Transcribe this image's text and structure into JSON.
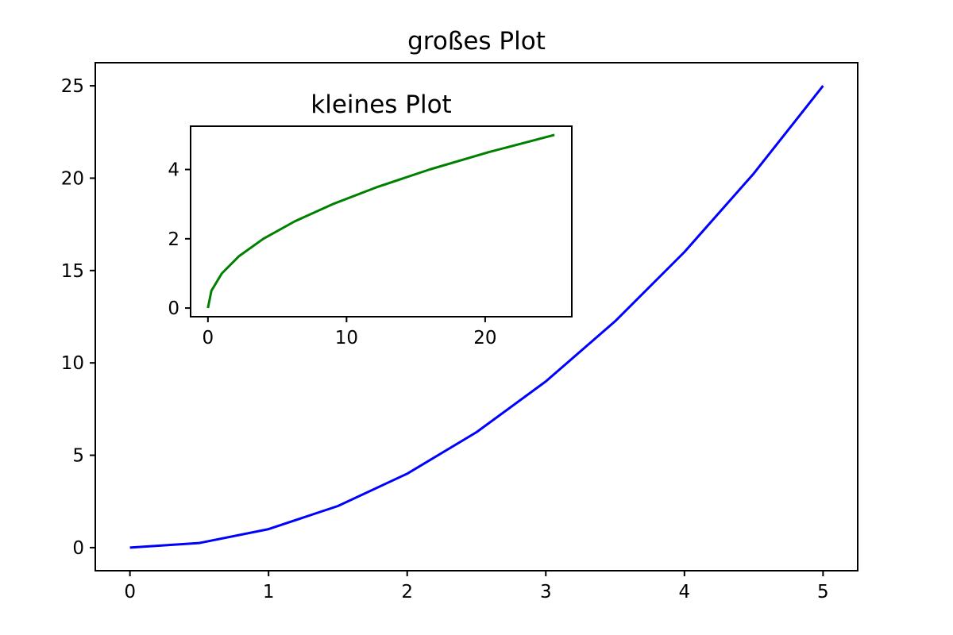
{
  "chart_data": [
    {
      "type": "line",
      "title": "großes Plot",
      "xlabel": "",
      "ylabel": "",
      "xlim": [
        -0.25,
        5.25
      ],
      "ylim": [
        -1.25,
        26.25
      ],
      "xticks": [
        0,
        1,
        2,
        3,
        4,
        5
      ],
      "yticks": [
        0,
        5,
        10,
        15,
        20,
        25
      ],
      "grid": false,
      "series": [
        {
          "color": "#0000ff",
          "x": [
            0,
            0.5,
            1,
            1.5,
            2,
            2.5,
            3,
            3.5,
            4,
            4.5,
            5
          ],
          "y": [
            0,
            0.25,
            1,
            2.25,
            4,
            6.25,
            9,
            12.25,
            16,
            20.25,
            25
          ]
        }
      ]
    },
    {
      "type": "line",
      "title": "kleines Plot",
      "xlabel": "",
      "ylabel": "",
      "xlim": [
        -1.25,
        26.25
      ],
      "ylim": [
        -0.25,
        5.25
      ],
      "xticks": [
        0,
        10,
        20
      ],
      "yticks": [
        0,
        2,
        4
      ],
      "grid": false,
      "series": [
        {
          "color": "#008000",
          "x": [
            0,
            0.25,
            1,
            2.25,
            4,
            6.25,
            9,
            12.25,
            16,
            20.25,
            25
          ],
          "y": [
            0,
            0.5,
            1,
            1.5,
            2,
            2.5,
            3,
            3.5,
            4,
            4.5,
            5
          ]
        }
      ]
    }
  ]
}
